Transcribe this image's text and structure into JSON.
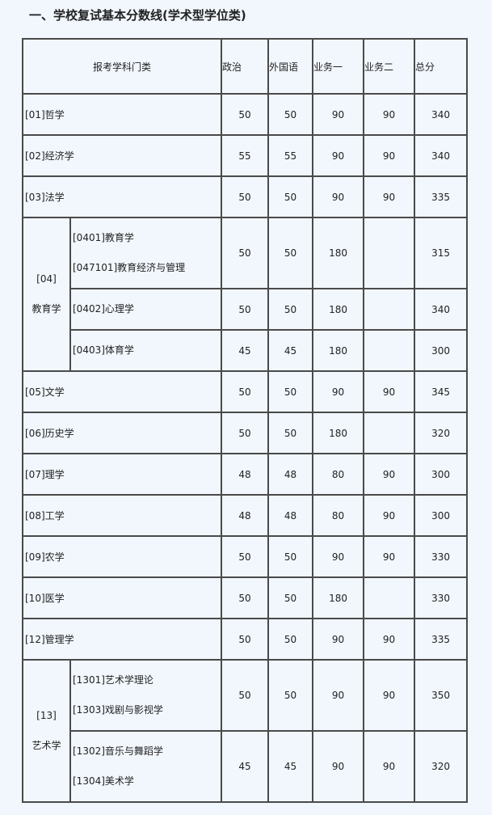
{
  "title": "一、学校复试基本分数线(学术型学位类)",
  "headers": [
    "报考学科门类",
    "政治",
    "外国语",
    "业务一",
    "业务二",
    "总分"
  ],
  "rows": [
    {
      "name": "[01]哲学",
      "scores": [
        "50",
        "50",
        "90",
        "90",
        "340"
      ]
    },
    {
      "name": "[02]经济学",
      "scores": [
        "55",
        "55",
        "90",
        "90",
        "340"
      ]
    },
    {
      "name": "[03]法学",
      "scores": [
        "50",
        "50",
        "90",
        "90",
        "335"
      ]
    },
    {
      "group_code": "[04]",
      "group_name": "教育学",
      "subrows": [
        {
          "names": [
            "[0401]教育学",
            "[047101]教育经济与管理"
          ],
          "scores": [
            "50",
            "50",
            "180",
            "",
            "315"
          ]
        },
        {
          "names": [
            "[0402]心理学"
          ],
          "scores": [
            "50",
            "50",
            "180",
            "",
            "340"
          ]
        },
        {
          "names": [
            "[0403]体育学"
          ],
          "scores": [
            "45",
            "45",
            "180",
            "",
            "300"
          ]
        }
      ]
    },
    {
      "name": "[05]文学",
      "scores": [
        "50",
        "50",
        "90",
        "90",
        "345"
      ]
    },
    {
      "name": "[06]历史学",
      "scores": [
        "50",
        "50",
        "180",
        "",
        "320"
      ]
    },
    {
      "name": "[07]理学",
      "scores": [
        "48",
        "48",
        "80",
        "90",
        "300"
      ]
    },
    {
      "name": "[08]工学",
      "scores": [
        "48",
        "48",
        "80",
        "90",
        "300"
      ]
    },
    {
      "name": "[09]农学",
      "scores": [
        "50",
        "50",
        "90",
        "90",
        "330"
      ]
    },
    {
      "name": "[10]医学",
      "scores": [
        "50",
        "50",
        "180",
        "",
        "330"
      ]
    },
    {
      "name": "[12]管理学",
      "scores": [
        "50",
        "50",
        "90",
        "90",
        "335"
      ]
    },
    {
      "group_code": "[13]",
      "group_name": "艺术学",
      "subrows": [
        {
          "names": [
            "[1301]艺术学理论",
            "[1303]戏剧与影视学"
          ],
          "scores": [
            "50",
            "50",
            "90",
            "90",
            "350"
          ]
        },
        {
          "names": [
            "[1302]音乐与舞蹈学",
            "[1304]美术学"
          ],
          "scores": [
            "45",
            "45",
            "90",
            "90",
            "320"
          ]
        }
      ]
    }
  ]
}
